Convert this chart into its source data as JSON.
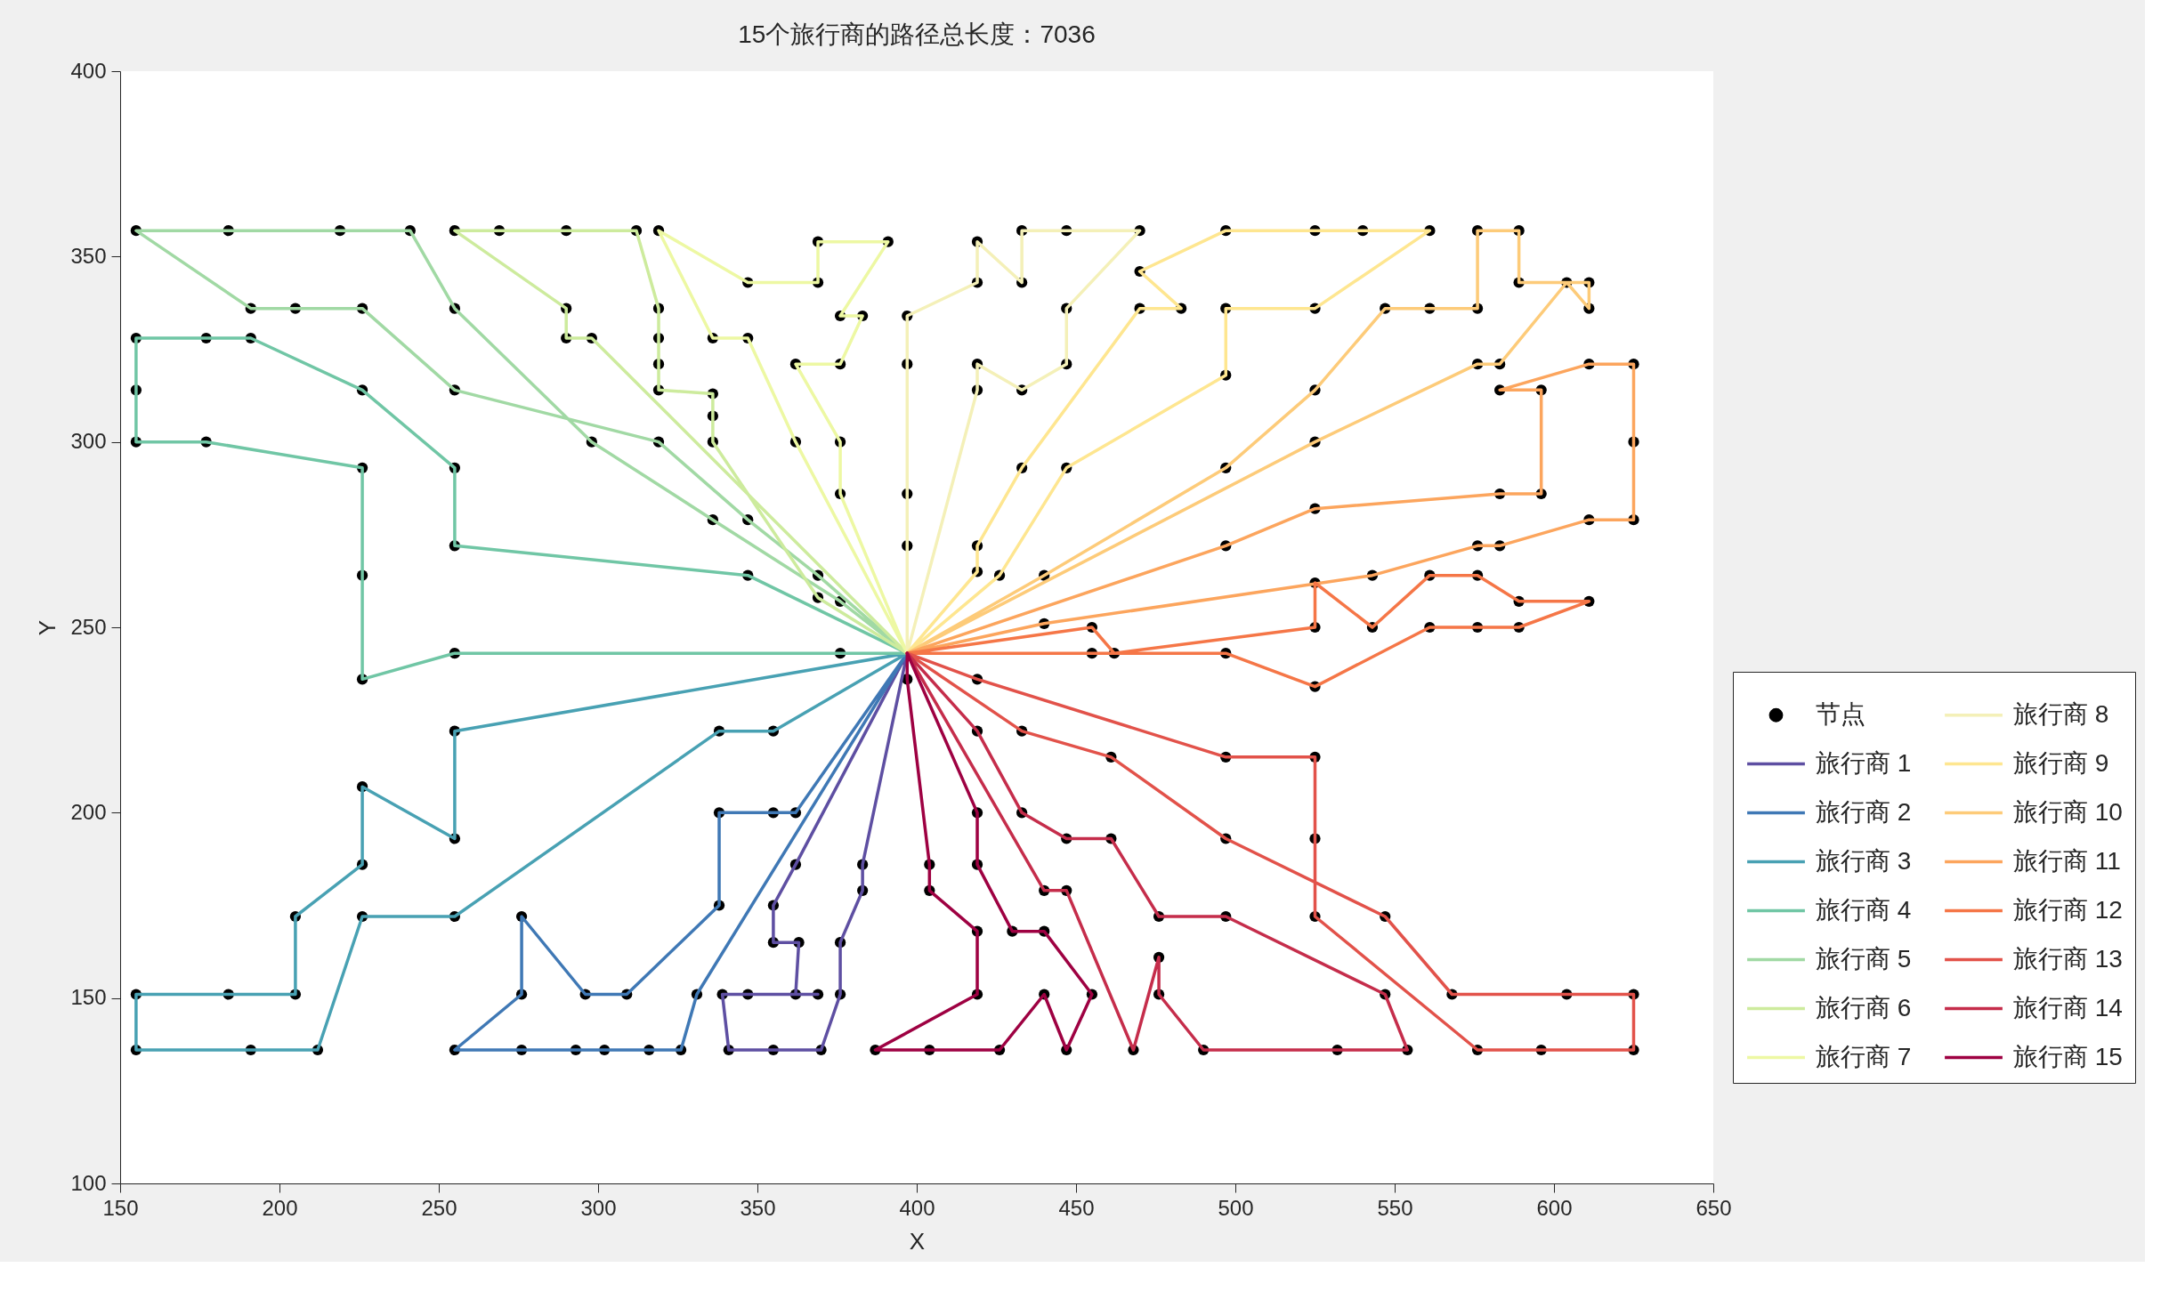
{
  "chart_data": {
    "type": "line",
    "title": "15个旅行商的路径总长度：7036",
    "xlabel": "X",
    "ylabel": "Y",
    "xlim": [
      150,
      650
    ],
    "ylim": [
      100,
      400
    ],
    "xticks": [
      150,
      200,
      250,
      300,
      350,
      400,
      450,
      500,
      550,
      600,
      650
    ],
    "yticks": [
      100,
      150,
      200,
      250,
      300,
      350,
      400
    ],
    "legend": "right",
    "series": [
      {
        "name": "节点",
        "type": "scatter",
        "marker": "circle",
        "color": "#000000",
        "x": [
          362,
          355,
          355,
          363,
          362,
          369,
          347,
          339,
          341,
          355,
          370,
          376,
          376,
          383,
          383,
          362,
          355,
          338,
          338,
          309,
          296,
          276,
          276,
          255,
          276,
          293,
          302,
          316,
          326,
          331,
          355,
          338,
          255,
          226,
          212,
          191,
          155,
          155,
          184,
          205,
          205,
          226,
          226,
          255,
          255,
          376,
          255,
          226,
          226,
          226,
          177,
          155,
          155,
          155,
          177,
          191,
          226,
          255,
          255,
          347,
          376,
          336,
          298,
          255,
          241,
          219,
          184,
          155,
          191,
          205,
          226,
          255,
          319,
          347,
          369,
          298,
          290,
          290,
          255,
          269,
          290,
          312,
          319,
          319,
          319,
          319,
          336,
          336,
          336,
          369,
          362,
          347,
          336,
          319,
          347,
          369,
          369,
          391,
          376,
          383,
          376,
          362,
          376,
          376,
          397,
          397,
          397,
          397,
          419,
          419,
          433,
          433,
          447,
          470,
          447,
          447,
          433,
          419,
          419,
          419,
          419,
          433,
          470,
          483,
          470,
          497,
          525,
          540,
          561,
          525,
          497,
          497,
          447,
          426,
          440,
          497,
          525,
          547,
          561,
          576,
          576,
          589,
          589,
          611,
          611,
          604,
          583,
          576,
          525,
          497,
          525,
          583,
          596,
          596,
          583,
          611,
          625,
          625,
          625,
          611,
          583,
          576,
          543,
          440,
          455,
          497,
          525,
          561,
          576,
          589,
          611,
          589,
          576,
          561,
          543,
          525,
          525,
          462,
          455,
          419,
          497,
          525,
          525,
          525,
          576,
          596,
          625,
          625,
          604,
          568,
          547,
          497,
          461,
          433,
          419,
          433,
          447,
          461,
          476,
          497,
          547,
          554,
          532,
          490,
          476,
          476,
          468,
          447,
          440,
          397,
          404,
          404,
          419,
          419,
          387,
          404,
          426,
          440,
          447,
          455,
          440,
          430,
          419,
          419
        ],
        "values": [
          186,
          175,
          165,
          165,
          151,
          151,
          151,
          151,
          136,
          136,
          136,
          151,
          165,
          179,
          186,
          200,
          200,
          200,
          175,
          151,
          151,
          172,
          151,
          136,
          136,
          136,
          136,
          136,
          136,
          151,
          222,
          222,
          172,
          172,
          136,
          136,
          136,
          151,
          151,
          151,
          172,
          186,
          207,
          193,
          222,
          243,
          243,
          236,
          264,
          293,
          300,
          300,
          314,
          328,
          328,
          328,
          314,
          293,
          272,
          264,
          257,
          279,
          300,
          336,
          357,
          357,
          357,
          357,
          336,
          336,
          336,
          314,
          300,
          279,
          264,
          328,
          328,
          336,
          357,
          357,
          357,
          357,
          336,
          328,
          321,
          314,
          313,
          307,
          300,
          258,
          300,
          328,
          328,
          357,
          343,
          343,
          354,
          354,
          334,
          334,
          321,
          321,
          300,
          286,
          272,
          286,
          321,
          334,
          343,
          354,
          343,
          357,
          357,
          357,
          336,
          321,
          314,
          321,
          314,
          265,
          272,
          293,
          336,
          336,
          346,
          357,
          357,
          357,
          357,
          336,
          336,
          318,
          293,
          264,
          264,
          293,
          314,
          336,
          336,
          336,
          357,
          357,
          343,
          343,
          336,
          343,
          321,
          321,
          300,
          272,
          282,
          286,
          286,
          314,
          314,
          321,
          321,
          300,
          279,
          279,
          272,
          272,
          264,
          251,
          243,
          243,
          234,
          250,
          250,
          250,
          257,
          257,
          264,
          264,
          250,
          262,
          250,
          243,
          250,
          236,
          215,
          215,
          193,
          172,
          136,
          136,
          136,
          151,
          151,
          151,
          172,
          193,
          215,
          222,
          222,
          200,
          193,
          193,
          172,
          172,
          151,
          136,
          136,
          136,
          151,
          161,
          136,
          179,
          179,
          236,
          186,
          179,
          168,
          151,
          136,
          136,
          136,
          151,
          136,
          151,
          168,
          168,
          186,
          200
        ]
      },
      {
        "name": "旅行商 1",
        "color": "#5e4fa2",
        "x": [
          397,
          362,
          355,
          355,
          363,
          362,
          369,
          347,
          339,
          341,
          355,
          370,
          376,
          376,
          383,
          383,
          397
        ],
        "values": [
          243,
          186,
          175,
          165,
          165,
          151,
          151,
          151,
          151,
          136,
          136,
          136,
          151,
          165,
          179,
          186,
          243
        ]
      },
      {
        "name": "旅行商 2",
        "color": "#3f78b5",
        "x": [
          397,
          362,
          355,
          338,
          338,
          309,
          296,
          276,
          276,
          255,
          276,
          293,
          302,
          316,
          326,
          331,
          397
        ],
        "values": [
          243,
          200,
          200,
          200,
          175,
          151,
          151,
          172,
          151,
          136,
          136,
          136,
          136,
          136,
          136,
          151,
          243
        ]
      },
      {
        "name": "旅行商 3",
        "color": "#48a1b3",
        "x": [
          397,
          355,
          338,
          255,
          226,
          212,
          191,
          155,
          155,
          184,
          205,
          205,
          226,
          226,
          255,
          255,
          397
        ],
        "values": [
          243,
          222,
          222,
          172,
          172,
          136,
          136,
          136,
          151,
          151,
          151,
          172,
          186,
          207,
          193,
          222,
          243
        ]
      },
      {
        "name": "旅行商 4",
        "color": "#70c6a5",
        "x": [
          397,
          376,
          255,
          226,
          226,
          226,
          177,
          155,
          155,
          155,
          177,
          191,
          226,
          255,
          255,
          347,
          397
        ],
        "values": [
          243,
          243,
          243,
          236,
          264,
          293,
          300,
          300,
          314,
          328,
          328,
          328,
          314,
          293,
          272,
          264,
          243
        ]
      },
      {
        "name": "旅行商 5",
        "color": "#a1d9a4",
        "x": [
          397,
          376,
          336,
          298,
          255,
          241,
          219,
          184,
          155,
          191,
          205,
          226,
          255,
          319,
          347,
          369,
          397
        ],
        "values": [
          243,
          257,
          279,
          300,
          336,
          357,
          357,
          357,
          357,
          336,
          336,
          336,
          314,
          300,
          279,
          264,
          243
        ]
      },
      {
        "name": "旅行商 6",
        "color": "#cdeb9d",
        "x": [
          397,
          298,
          290,
          290,
          255,
          269,
          290,
          312,
          319,
          319,
          319,
          319,
          336,
          336,
          336,
          369,
          397
        ],
        "values": [
          243,
          328,
          328,
          336,
          357,
          357,
          357,
          357,
          336,
          328,
          321,
          314,
          313,
          307,
          300,
          258,
          243
        ]
      },
      {
        "name": "旅行商 7",
        "color": "#edf8a3",
        "x": [
          397,
          362,
          347,
          336,
          319,
          347,
          369,
          369,
          391,
          376,
          383,
          376,
          362,
          376,
          376,
          397
        ],
        "values": [
          243,
          300,
          328,
          328,
          357,
          343,
          343,
          354,
          354,
          334,
          334,
          321,
          321,
          300,
          286,
          243
        ]
      },
      {
        "name": "旅行商 8",
        "color": "#f4f0b8",
        "x": [
          397,
          397,
          397,
          397,
          397,
          419,
          419,
          433,
          433,
          447,
          470,
          447,
          447,
          433,
          419,
          419,
          397
        ],
        "values": [
          243,
          272,
          286,
          321,
          334,
          343,
          354,
          343,
          357,
          357,
          357,
          336,
          321,
          314,
          321,
          314,
          243
        ]
      },
      {
        "name": "旅行商 9",
        "color": "#fee690",
        "x": [
          397,
          419,
          419,
          433,
          470,
          483,
          470,
          497,
          525,
          540,
          561,
          525,
          497,
          497,
          447,
          426,
          397
        ],
        "values": [
          243,
          265,
          272,
          293,
          336,
          336,
          346,
          357,
          357,
          357,
          357,
          336,
          336,
          318,
          293,
          264,
          243
        ]
      },
      {
        "name": "旅行商 10",
        "color": "#fdcb79",
        "x": [
          397,
          440,
          497,
          525,
          547,
          561,
          576,
          576,
          589,
          589,
          611,
          611,
          604,
          583,
          576,
          525,
          397
        ],
        "values": [
          243,
          264,
          293,
          314,
          336,
          336,
          336,
          357,
          357,
          343,
          343,
          336,
          343,
          321,
          321,
          300,
          243
        ]
      },
      {
        "name": "旅行商 11",
        "color": "#fca55d",
        "x": [
          397,
          497,
          525,
          583,
          596,
          596,
          583,
          611,
          625,
          625,
          625,
          611,
          583,
          576,
          543,
          440,
          397
        ],
        "values": [
          243,
          272,
          282,
          286,
          286,
          314,
          314,
          321,
          321,
          300,
          279,
          279,
          272,
          272,
          264,
          251,
          243
        ]
      },
      {
        "name": "旅行商 12",
        "color": "#f57647",
        "x": [
          397,
          455,
          497,
          525,
          561,
          576,
          589,
          611,
          589,
          576,
          561,
          543,
          525,
          525,
          462,
          455,
          397
        ],
        "values": [
          243,
          243,
          243,
          234,
          250,
          250,
          250,
          257,
          257,
          264,
          264,
          250,
          262,
          250,
          243,
          250,
          243
        ]
      },
      {
        "name": "旅行商 13",
        "color": "#e2524a",
        "x": [
          397,
          419,
          497,
          525,
          525,
          525,
          576,
          596,
          625,
          625,
          604,
          568,
          547,
          497,
          461,
          433,
          397
        ],
        "values": [
          243,
          236,
          215,
          215,
          193,
          172,
          136,
          136,
          136,
          151,
          151,
          151,
          172,
          193,
          215,
          222,
          243
        ]
      },
      {
        "name": "旅行商 14",
        "color": "#c52d4b",
        "x": [
          397,
          419,
          433,
          447,
          461,
          476,
          497,
          547,
          554,
          532,
          490,
          476,
          476,
          468,
          447,
          440,
          397
        ],
        "values": [
          243,
          222,
          200,
          193,
          193,
          172,
          172,
          151,
          136,
          136,
          136,
          151,
          161,
          136,
          179,
          179,
          243
        ]
      },
      {
        "name": "旅行商 15",
        "color": "#9e0142",
        "x": [
          397,
          397,
          404,
          404,
          419,
          419,
          387,
          404,
          426,
          440,
          447,
          455,
          440,
          430,
          419,
          419,
          397
        ],
        "values": [
          243,
          236,
          186,
          179,
          168,
          151,
          136,
          136,
          136,
          151,
          136,
          151,
          168,
          168,
          186,
          200,
          243
        ]
      }
    ]
  }
}
